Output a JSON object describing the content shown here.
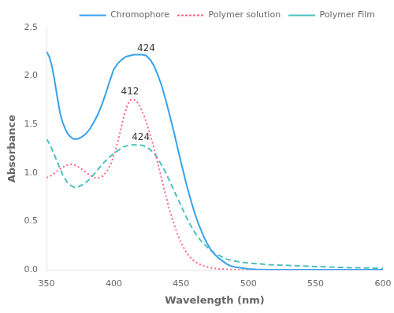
{
  "chart_data": {
    "type": "line",
    "xlabel": "Wavelength (nm)",
    "ylabel": "Absorbance",
    "xlim": [
      350,
      600
    ],
    "xticks": [
      350,
      400,
      450,
      500,
      550,
      600
    ],
    "ylim": [
      0.0,
      2.5
    ],
    "yticks": [
      {
        "value": 0.0,
        "label": "0.0"
      },
      0.5,
      {
        "value": 1.0,
        "label": "1.0"
      },
      1.5,
      {
        "value": 2.0,
        "label": "2.0"
      },
      2.5
    ],
    "grid": false,
    "legend": "upper right",
    "series": [
      {
        "name": "Chromophore",
        "line_style": "solid",
        "x": [
          350,
          352,
          354,
          356,
          358,
          360,
          362,
          364,
          366,
          368,
          370,
          373,
          376,
          379,
          382,
          385,
          388,
          391,
          394,
          397,
          400,
          403,
          406,
          409,
          412,
          415,
          418,
          421,
          424,
          427,
          430,
          433,
          436,
          439,
          442,
          445,
          448,
          451,
          454,
          457,
          460,
          463,
          466,
          469,
          472,
          475,
          478,
          481,
          484,
          487,
          490,
          495,
          500,
          505,
          510,
          515,
          520,
          525,
          530,
          540,
          550,
          560,
          570,
          580,
          590,
          600
        ],
        "values": [
          2.25,
          2.2,
          2.1,
          1.95,
          1.78,
          1.62,
          1.52,
          1.45,
          1.4,
          1.37,
          1.35,
          1.35,
          1.37,
          1.4,
          1.45,
          1.52,
          1.6,
          1.7,
          1.82,
          1.95,
          2.07,
          2.13,
          2.17,
          2.2,
          2.21,
          2.22,
          2.22,
          2.22,
          2.21,
          2.17,
          2.1,
          2.0,
          1.88,
          1.73,
          1.57,
          1.4,
          1.22,
          1.05,
          0.88,
          0.73,
          0.59,
          0.47,
          0.37,
          0.28,
          0.21,
          0.16,
          0.12,
          0.09,
          0.06,
          0.04,
          0.03,
          0.02,
          0.01,
          0.005,
          0.003,
          0.002,
          0.001,
          0.001,
          0.001,
          0.001,
          0.001,
          0.001,
          0.001,
          0.001,
          0.001,
          0.001
        ]
      },
      {
        "name": "Polymer solution",
        "line_style": "dotted",
        "x": [
          350,
          353,
          356,
          359,
          362,
          365,
          368,
          371,
          374,
          377,
          380,
          383,
          386,
          389,
          392,
          395,
          398,
          401,
          404,
          407,
          410,
          412,
          414,
          416,
          418,
          420,
          423,
          426,
          429,
          432,
          435,
          438,
          441,
          444,
          447,
          450,
          453,
          456,
          459,
          462,
          465,
          468,
          471,
          474,
          477,
          480,
          485,
          490,
          495,
          500,
          510,
          520,
          530,
          540,
          550,
          560,
          570,
          580,
          590,
          600
        ],
        "values": [
          0.95,
          0.97,
          1.0,
          1.03,
          1.06,
          1.08,
          1.09,
          1.08,
          1.06,
          1.03,
          1.0,
          0.97,
          0.95,
          0.95,
          0.97,
          1.02,
          1.1,
          1.22,
          1.38,
          1.56,
          1.7,
          1.75,
          1.76,
          1.75,
          1.72,
          1.67,
          1.57,
          1.44,
          1.3,
          1.14,
          0.97,
          0.8,
          0.64,
          0.5,
          0.38,
          0.28,
          0.2,
          0.14,
          0.1,
          0.07,
          0.05,
          0.035,
          0.025,
          0.018,
          0.012,
          0.008,
          0.005,
          0.003,
          0.002,
          0.001,
          0.001,
          0.001,
          0.001,
          0.001,
          0.001,
          0.001,
          0.001,
          0.001,
          0.001,
          0.001
        ]
      },
      {
        "name": "Polymer Film",
        "line_style": "dashed",
        "x": [
          350,
          353,
          356,
          359,
          362,
          365,
          368,
          371,
          374,
          377,
          380,
          383,
          386,
          389,
          392,
          395,
          398,
          401,
          404,
          407,
          410,
          413,
          416,
          419,
          422,
          424,
          427,
          430,
          433,
          436,
          439,
          442,
          445,
          448,
          451,
          454,
          457,
          460,
          463,
          466,
          469,
          472,
          475,
          478,
          481,
          484,
          487,
          490,
          495,
          500,
          505,
          510,
          515,
          520,
          525,
          530,
          540,
          550,
          560,
          570,
          580,
          590,
          600
        ],
        "values": [
          1.35,
          1.28,
          1.18,
          1.08,
          0.98,
          0.91,
          0.87,
          0.85,
          0.86,
          0.88,
          0.91,
          0.95,
          1.0,
          1.05,
          1.1,
          1.14,
          1.18,
          1.21,
          1.24,
          1.27,
          1.28,
          1.29,
          1.29,
          1.29,
          1.28,
          1.27,
          1.24,
          1.2,
          1.14,
          1.07,
          0.99,
          0.9,
          0.81,
          0.72,
          0.63,
          0.54,
          0.46,
          0.39,
          0.33,
          0.28,
          0.24,
          0.2,
          0.17,
          0.15,
          0.13,
          0.11,
          0.1,
          0.09,
          0.08,
          0.07,
          0.065,
          0.06,
          0.055,
          0.052,
          0.049,
          0.046,
          0.04,
          0.035,
          0.03,
          0.025,
          0.022,
          0.019,
          0.016
        ]
      }
    ],
    "annotations": [
      {
        "text": "424",
        "x": 424,
        "y": 2.22
      },
      {
        "text": "412",
        "x": 412,
        "y": 1.77
      },
      {
        "text": "424",
        "x": 420,
        "y": 1.3
      }
    ]
  }
}
